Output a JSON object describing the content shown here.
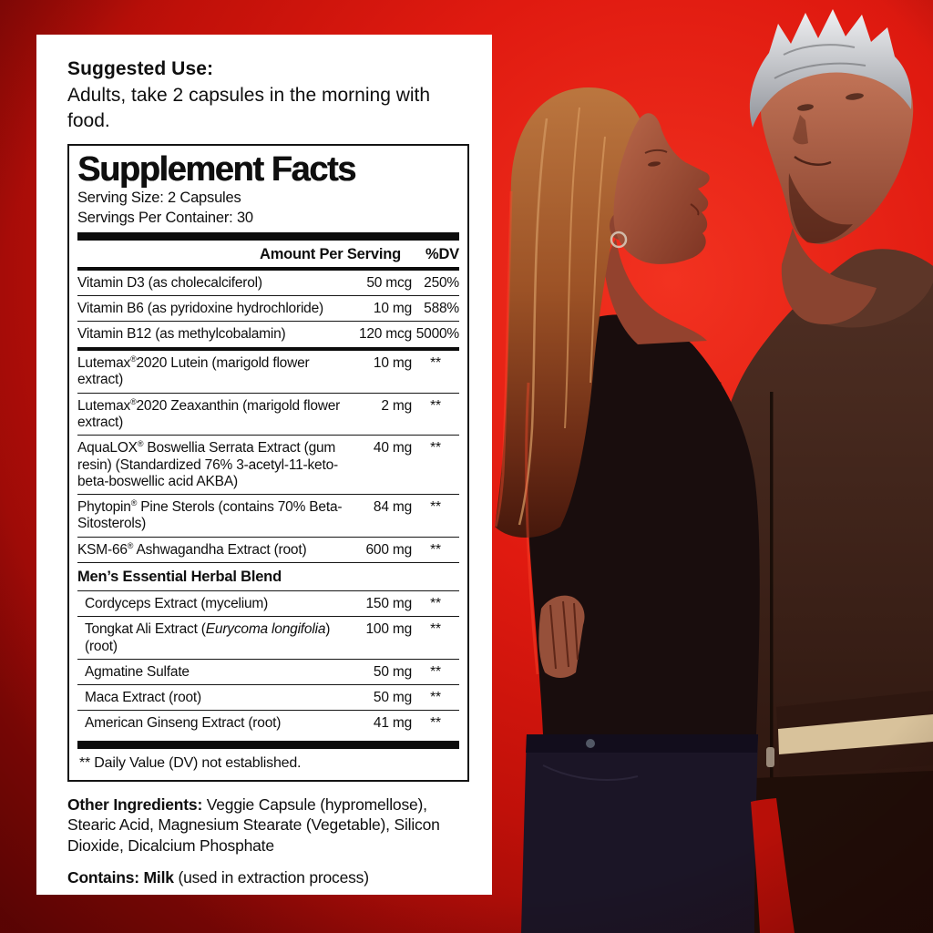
{
  "colors": {
    "background_red": "#dd1910",
    "background_red_bright": "#f23220",
    "background_red_dark": "#8a0806",
    "panel_white": "#ffffff",
    "text_black": "#0f0f0f",
    "jacket_stripe_cream": "#e2cba3"
  },
  "suggested_use": {
    "heading": "Suggested Use:",
    "body": "Adults, take 2 capsules in the morning with food."
  },
  "supplement_facts": {
    "title": "Supplement Facts",
    "serving_size": "Serving Size: 2 Capsules",
    "servings_per_container": "Servings Per Container: 30",
    "header": {
      "amount": "Amount Per Serving",
      "dv": "%DV"
    },
    "vitamin_rows": [
      {
        "name": "Vitamin D3 (as cholecalciferol)",
        "amount": "50 mcg",
        "dv": "250%"
      },
      {
        "name": "Vitamin B6 (as pyridoxine hydrochloride)",
        "amount": "10 mg",
        "dv": "588%"
      },
      {
        "name": "Vitamin B12 (as methylcobalamin)",
        "amount": "120 mcg",
        "dv": "5000%"
      }
    ],
    "ingredient_rows": [
      {
        "name": "Lutemax®2020 Lutein (marigold flower extract)",
        "amount": "10 mg",
        "dv": "**"
      },
      {
        "name": "Lutemax®2020 Zeaxanthin (marigold flower extract)",
        "amount": "2 mg",
        "dv": "**"
      },
      {
        "name": "AquaLOX® Boswellia Serrata Extract (gum resin) (Standardized 76% 3-acetyl-11-keto-beta-boswellic acid AKBA)",
        "amount": "40 mg",
        "dv": "**"
      },
      {
        "name": "Phytopin® Pine Sterols (contains 70% Beta-Sitosterols)",
        "amount": "84 mg",
        "dv": "**"
      },
      {
        "name": "KSM-66® Ashwagandha Extract (root)",
        "amount": "600 mg",
        "dv": "**"
      }
    ],
    "blend_header": "Men’s Essential Herbal Blend",
    "blend_rows": [
      {
        "name": "Cordyceps Extract (mycelium)",
        "amount": "150 mg",
        "dv": "**"
      },
      {
        "name": "Tongkat Ali Extract (*Eurycoma longifolia*) (root)",
        "amount": "100 mg",
        "dv": "**"
      },
      {
        "name": "Agmatine Sulfate",
        "amount": "50 mg",
        "dv": "**"
      },
      {
        "name": "Maca Extract (root)",
        "amount": "50 mg",
        "dv": "**"
      },
      {
        "name": "American Ginseng Extract (root)",
        "amount": "41 mg",
        "dv": "**"
      }
    ],
    "footnote": "** Daily Value (DV) not established."
  },
  "other_ingredients": {
    "label": "Other Ingredients:",
    "text": "Veggie Capsule (hypromellose), Stearic Acid, Magnesium Stearate (Vegetable), Silicon Dioxide, Dicalcium Phosphate"
  },
  "contains": {
    "label": "Contains: Milk",
    "text": "(used in extraction process)"
  }
}
